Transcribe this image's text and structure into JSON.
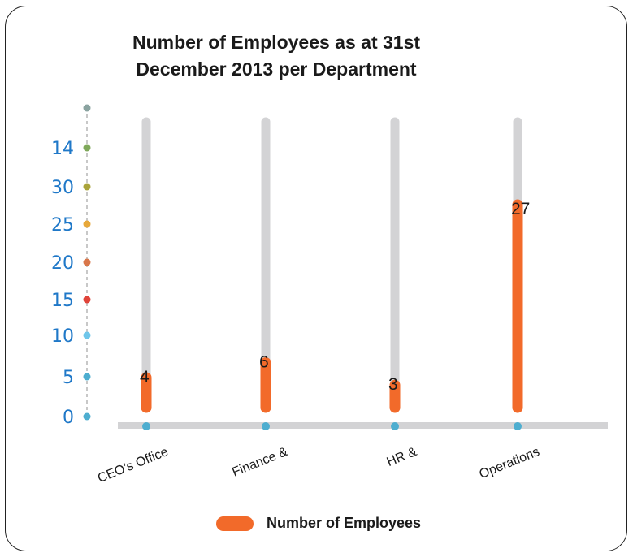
{
  "chart_data": {
    "type": "bar",
    "title": "Number of Employees as at 31st December 2013 per Department",
    "categories": [
      "CEO’s Office",
      "Finance &",
      "HR &",
      "Operations"
    ],
    "series": [
      {
        "name": "Number of Employees",
        "values": [
          4,
          6,
          3,
          27
        ]
      }
    ],
    "data_labels": [
      "4",
      "6",
      "3",
      "27"
    ],
    "y_tick_labels": [
      "0",
      "5",
      "10",
      "15",
      "20",
      "25",
      "30",
      "14",
      ""
    ],
    "y_tick_dot_colors": [
      "#4eaed0",
      "#4eaed0",
      "#6fc6ea",
      "#e0443a",
      "#d9774a",
      "#e7a83a",
      "#a9a33a",
      "#7fa85a",
      "#8aa3a0"
    ],
    "ylim": [
      0,
      40
    ],
    "grid": false,
    "legend_position": "bottom",
    "colors": {
      "bar": "#f26a2a",
      "track": "#d3d3d5",
      "axis": "#d3d3d5",
      "axis_dot": "#4eaed0"
    }
  }
}
